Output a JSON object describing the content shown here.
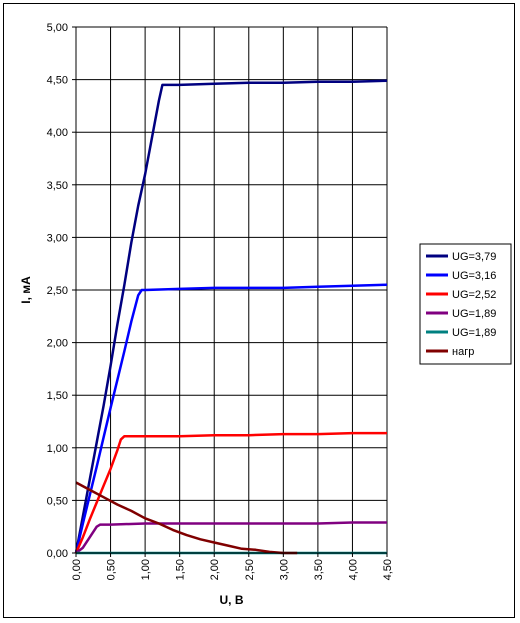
{
  "chart_data": {
    "type": "line",
    "title": "",
    "xlabel": "U, В",
    "ylabel": "I, мА",
    "xlim": [
      0,
      4.5
    ],
    "ylim": [
      0,
      5
    ],
    "x_ticks": [
      "0,00",
      "0,50",
      "1,00",
      "1,50",
      "2,00",
      "2,50",
      "3,00",
      "3,50",
      "4,00",
      "4,50"
    ],
    "y_ticks": [
      "0,00",
      "0,50",
      "1,00",
      "1,50",
      "2,00",
      "2,50",
      "3,00",
      "3,50",
      "4,00",
      "4,50",
      "5,00"
    ],
    "grid": true,
    "legend_position": "right",
    "series": [
      {
        "name": "UG=3,79",
        "color": "#000080",
        "x": [
          0,
          0.1,
          0.2,
          0.3,
          0.4,
          0.5,
          0.6,
          0.7,
          0.8,
          0.9,
          1.0,
          1.1,
          1.2,
          1.25,
          1.3,
          1.5,
          2.0,
          2.5,
          3.0,
          3.5,
          4.0,
          4.5
        ],
        "y": [
          0,
          0.35,
          0.7,
          1.05,
          1.4,
          1.78,
          2.18,
          2.55,
          2.95,
          3.3,
          3.6,
          3.95,
          4.3,
          4.45,
          4.45,
          4.45,
          4.46,
          4.47,
          4.47,
          4.48,
          4.48,
          4.49
        ]
      },
      {
        "name": "UG=3,16",
        "color": "#0000ff",
        "x": [
          0,
          0.1,
          0.2,
          0.3,
          0.4,
          0.5,
          0.6,
          0.7,
          0.8,
          0.9,
          0.95,
          1.0,
          1.5,
          2.0,
          2.5,
          3.0,
          3.5,
          4.0,
          4.5
        ],
        "y": [
          0,
          0.28,
          0.55,
          0.82,
          1.1,
          1.38,
          1.65,
          1.92,
          2.2,
          2.45,
          2.5,
          2.5,
          2.51,
          2.52,
          2.52,
          2.52,
          2.53,
          2.54,
          2.55
        ]
      },
      {
        "name": "UG=2,52",
        "color": "#ff0000",
        "x": [
          0,
          0.1,
          0.2,
          0.3,
          0.4,
          0.5,
          0.6,
          0.65,
          0.7,
          1.0,
          1.5,
          2.0,
          2.5,
          3.0,
          3.5,
          4.0,
          4.5
        ],
        "y": [
          0,
          0.15,
          0.32,
          0.48,
          0.64,
          0.8,
          0.98,
          1.08,
          1.11,
          1.11,
          1.11,
          1.12,
          1.12,
          1.13,
          1.13,
          1.14,
          1.14
        ]
      },
      {
        "name": "UG=1,89",
        "color": "#800080",
        "x": [
          0,
          0.1,
          0.2,
          0.3,
          0.35,
          0.5,
          1.0,
          1.5,
          2.0,
          2.5,
          3.0,
          3.5,
          4.0,
          4.5
        ],
        "y": [
          0,
          0.05,
          0.15,
          0.25,
          0.27,
          0.27,
          0.28,
          0.28,
          0.28,
          0.28,
          0.28,
          0.28,
          0.29,
          0.29
        ]
      },
      {
        "name": "UG=1,89",
        "color": "#008080",
        "x": [
          0,
          0.5,
          1.0,
          1.5,
          2.0,
          2.5,
          3.0,
          3.5,
          4.0,
          4.5
        ],
        "y": [
          0,
          0,
          0,
          0,
          0,
          0,
          0,
          0,
          0,
          0
        ]
      },
      {
        "name": "нагр",
        "color": "#800000",
        "x": [
          0,
          0.2,
          0.4,
          0.6,
          0.8,
          1.0,
          1.2,
          1.4,
          1.6,
          1.8,
          2.0,
          2.2,
          2.4,
          2.6,
          2.8,
          3.0,
          3.2
        ],
        "y": [
          0.67,
          0.6,
          0.53,
          0.46,
          0.4,
          0.33,
          0.28,
          0.22,
          0.17,
          0.13,
          0.1,
          0.07,
          0.04,
          0.03,
          0.01,
          0.0,
          0.0
        ]
      }
    ]
  }
}
